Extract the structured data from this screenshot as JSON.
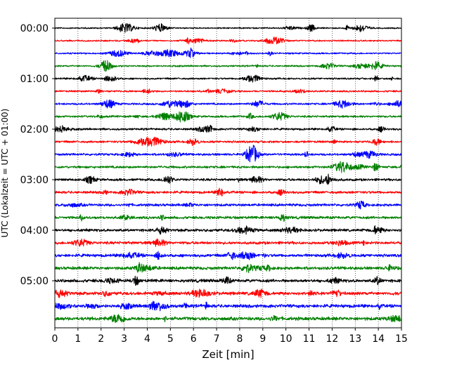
{
  "chart_data": {
    "type": "line",
    "title": "",
    "xlabel": "Zeit  [min]",
    "ylabel": "UTC (Lokalzeit = UTC + 01:00)",
    "xlim": [
      0,
      15
    ],
    "x_ticks": [
      "0",
      "1",
      "2",
      "3",
      "4",
      "5",
      "6",
      "7",
      "8",
      "9",
      "10",
      "11",
      "12",
      "13",
      "14",
      "15"
    ],
    "y_tick_labels": [
      "00:00",
      "01:00",
      "02:00",
      "03:00",
      "04:00",
      "05:00"
    ],
    "y_tick_trace_index": [
      0,
      4,
      8,
      12,
      16,
      20
    ],
    "trace_minutes": 15,
    "trace_count": 24,
    "trace_colors": [
      "#000000",
      "#ff0000",
      "#0000ff",
      "#008000"
    ],
    "grid": {
      "x": true,
      "style": "dotted"
    },
    "series_note_free": true
  }
}
